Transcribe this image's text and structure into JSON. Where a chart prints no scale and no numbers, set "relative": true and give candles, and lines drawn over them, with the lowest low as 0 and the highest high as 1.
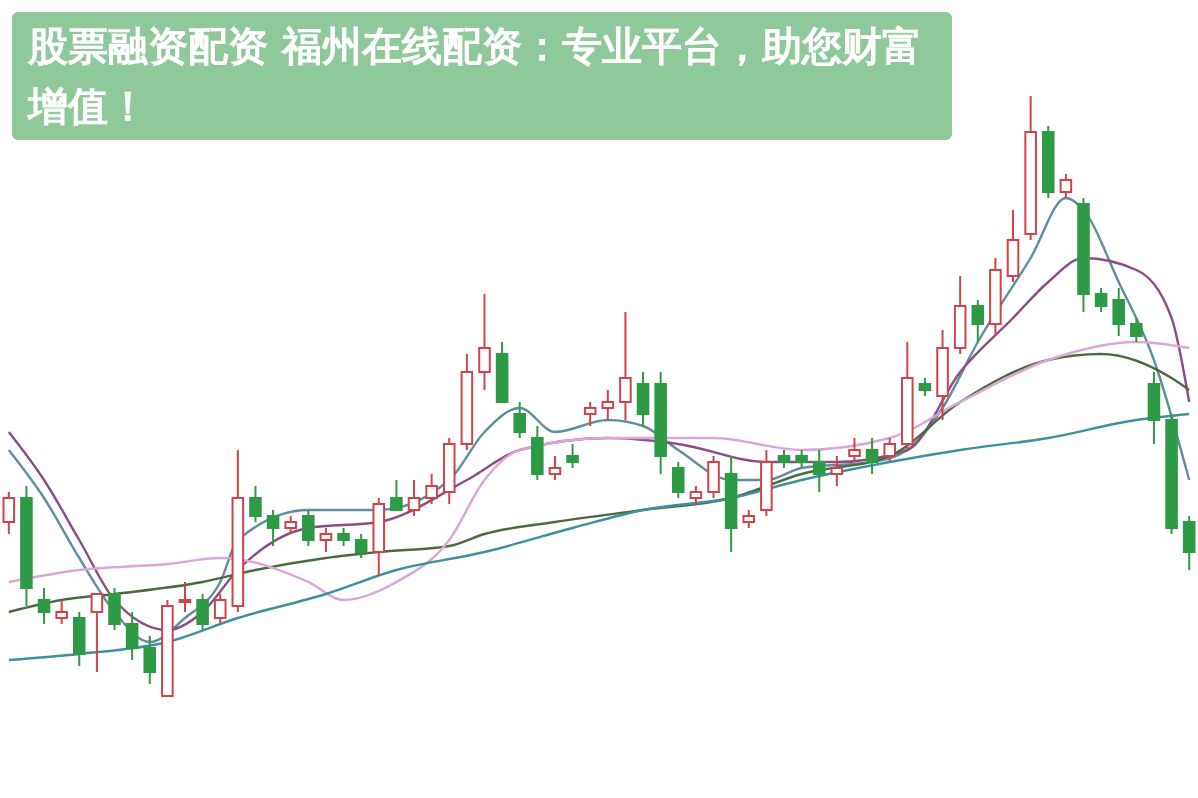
{
  "chart_data": {
    "type": "candlestick",
    "relative": true,
    "title": "股票融资配资 福州在线配资：专业平台，助您财富增值！",
    "categories": [
      null,
      null,
      null,
      null,
      null,
      null,
      null,
      null,
      null,
      null,
      null,
      null,
      null,
      null,
      null,
      null,
      null,
      null,
      null,
      null,
      null,
      null,
      null,
      null,
      null,
      null,
      null,
      null,
      null,
      null,
      null,
      null,
      null,
      null,
      null,
      null,
      null,
      null,
      null,
      null,
      null,
      null,
      null,
      null,
      null,
      null,
      null,
      null,
      null,
      null,
      null,
      null,
      null,
      null,
      null,
      null,
      null,
      null,
      null,
      null,
      null,
      null,
      null,
      null,
      null,
      null,
      null,
      null
    ],
    "ohlc": [
      [
        0.29,
        0.34,
        0.27,
        0.33
      ],
      [
        0.33,
        0.35,
        0.15,
        0.18
      ],
      [
        0.16,
        0.18,
        0.12,
        0.14
      ],
      [
        0.13,
        0.16,
        0.12,
        0.14
      ],
      [
        0.13,
        0.14,
        0.05,
        0.07
      ],
      [
        0.14,
        0.17,
        0.04,
        0.17
      ],
      [
        0.17,
        0.18,
        0.11,
        0.12
      ],
      [
        0.12,
        0.14,
        0.06,
        0.08
      ],
      [
        0.08,
        0.1,
        0.02,
        0.04
      ],
      [
        0,
        0.16,
        0,
        0.15
      ],
      [
        0.16,
        0.19,
        0.14,
        0.16
      ],
      [
        0.16,
        0.17,
        0.11,
        0.12
      ],
      [
        0.13,
        0.17,
        0.12,
        0.16
      ],
      [
        0.15,
        0.41,
        0.14,
        0.33
      ],
      [
        0.33,
        0.35,
        0.29,
        0.3
      ],
      [
        0.3,
        0.31,
        0.25,
        0.28
      ],
      [
        0.28,
        0.3,
        0.27,
        0.29
      ],
      [
        0.3,
        0.31,
        0.25,
        0.26
      ],
      [
        0.26,
        0.28,
        0.24,
        0.27
      ],
      [
        0.27,
        0.28,
        0.25,
        0.26
      ],
      [
        0.26,
        0.27,
        0.23,
        0.24
      ],
      [
        0.24,
        0.33,
        0.2,
        0.32
      ],
      [
        0.33,
        0.36,
        0.31,
        0.31
      ],
      [
        0.31,
        0.36,
        0.3,
        0.33
      ],
      [
        0.33,
        0.37,
        0.32,
        0.35
      ],
      [
        0.34,
        0.43,
        0.32,
        0.42
      ],
      [
        0.42,
        0.57,
        0.41,
        0.54
      ],
      [
        0.54,
        0.67,
        0.51,
        0.58
      ],
      [
        0.57,
        0.59,
        0.49,
        0.49
      ],
      [
        0.47,
        0.49,
        0.43,
        0.44
      ],
      [
        0.43,
        0.45,
        0.36,
        0.37
      ],
      [
        0.37,
        0.4,
        0.36,
        0.38
      ],
      [
        0.4,
        0.42,
        0.38,
        0.39
      ],
      [
        0.47,
        0.49,
        0.45,
        0.48
      ],
      [
        0.48,
        0.51,
        0.46,
        0.49
      ],
      [
        0.49,
        0.64,
        0.46,
        0.53
      ],
      [
        0.52,
        0.54,
        0.45,
        0.47
      ],
      [
        0.52,
        0.54,
        0.37,
        0.4
      ],
      [
        0.38,
        0.39,
        0.33,
        0.34
      ],
      [
        0.33,
        0.35,
        0.32,
        0.34
      ],
      [
        0.34,
        0.4,
        0.33,
        0.39
      ],
      [
        0.37,
        0.4,
        0.24,
        0.28
      ],
      [
        0.29,
        0.31,
        0.28,
        0.3
      ],
      [
        0.31,
        0.41,
        0.3,
        0.39
      ],
      [
        0.4,
        0.41,
        0.38,
        0.39
      ],
      [
        0.4,
        0.41,
        0.38,
        0.39
      ],
      [
        0.39,
        0.41,
        0.34,
        0.37
      ],
      [
        0.37,
        0.4,
        0.35,
        0.38
      ],
      [
        0.4,
        0.43,
        0.39,
        0.41
      ],
      [
        0.41,
        0.43,
        0.37,
        0.39
      ],
      [
        0.4,
        0.43,
        0.39,
        0.42
      ],
      [
        0.42,
        0.59,
        0.41,
        0.53
      ],
      [
        0.52,
        0.53,
        0.5,
        0.51
      ],
      [
        0.5,
        0.61,
        0.46,
        0.58
      ],
      [
        0.58,
        0.7,
        0.57,
        0.65
      ],
      [
        0.65,
        0.66,
        0.59,
        0.62
      ],
      [
        0.62,
        0.73,
        0.6,
        0.71
      ],
      [
        0.7,
        0.81,
        0.69,
        0.76
      ],
      [
        0.77,
        1,
        0.76,
        0.94
      ],
      [
        0.94,
        0.95,
        0.83,
        0.84
      ],
      [
        0.84,
        0.87,
        0.83,
        0.86
      ],
      [
        0.82,
        0.83,
        0.64,
        0.67
      ],
      [
        0.67,
        0.68,
        0.64,
        0.65
      ],
      [
        0.66,
        0.68,
        0.6,
        0.62
      ],
      [
        0.62,
        0.63,
        0.59,
        0.6
      ],
      [
        0.52,
        0.54,
        0.42,
        0.46
      ],
      [
        0.46,
        0.47,
        0.27,
        0.28
      ],
      [
        0.29,
        0.3,
        0.21,
        0.24
      ]
    ],
    "series": [
      {
        "type": "line",
        "color": "#5f8f9a",
        "values": [
          0.41,
          null,
          0.33,
          null,
          0.23,
          null,
          0.14,
          null,
          0.09,
          null,
          0.13,
          null,
          0.19,
          0.26,
          null,
          null,
          null,
          0.31,
          null,
          null,
          null,
          0.31,
          null,
          null,
          null,
          0.36,
          null,
          0.44,
          null,
          0.48,
          null,
          0.44,
          null,
          null,
          0.46,
          null,
          0.45,
          null,
          0.41,
          null,
          null,
          0.36,
          null,
          0.36,
          null,
          0.38,
          null,
          null,
          null,
          0.39,
          null,
          0.41,
          null,
          0.48,
          null,
          0.59,
          null,
          null,
          0.73,
          null,
          0.83,
          0.81,
          null,
          0.69,
          null,
          0.56,
          null,
          0.36
        ]
      },
      {
        "type": "line",
        "color": "#8a4d86",
        "values": [
          0.44,
          null,
          0.36,
          null,
          0.26,
          null,
          0.16,
          null,
          null,
          0.11,
          null,
          0.14,
          null,
          0.21,
          null,
          null,
          null,
          0.28,
          null,
          null,
          null,
          0.29,
          null,
          null,
          null,
          null,
          0.36,
          null,
          null,
          0.41,
          null,
          null,
          null,
          null,
          0.43,
          null,
          null,
          null,
          0.42,
          null,
          null,
          null,
          null,
          0.39,
          null,
          null,
          null,
          0.39,
          null,
          null,
          null,
          0.41,
          null,
          null,
          0.54,
          null,
          null,
          0.63,
          null,
          0.69,
          null,
          0.73,
          null,
          null,
          0.71,
          null,
          0.63,
          0.49
        ]
      },
      {
        "type": "line",
        "color": "#4a6b3e",
        "values": [
          0.14,
          null,
          null,
          0.16,
          null,
          null,
          0.17,
          null,
          null,
          null,
          null,
          0.19,
          null,
          null,
          0.21,
          null,
          null,
          null,
          0.23,
          null,
          null,
          0.24,
          null,
          null,
          null,
          0.25,
          null,
          0.27,
          null,
          null,
          null,
          0.29,
          null,
          null,
          null,
          null,
          0.31,
          null,
          null,
          null,
          null,
          0.33,
          null,
          null,
          null,
          0.37,
          null,
          null,
          null,
          null,
          0.4,
          null,
          null,
          null,
          0.49,
          null,
          null,
          null,
          null,
          0.56,
          null,
          null,
          0.57,
          null,
          null,
          null,
          0.53,
          0.51
        ]
      },
      {
        "type": "line",
        "color": "#d9a6d6",
        "values": [
          0.19,
          null,
          null,
          null,
          0.21,
          null,
          null,
          null,
          null,
          0.22,
          null,
          null,
          0.23,
          null,
          null,
          null,
          null,
          0.19,
          null,
          0.16,
          null,
          null,
          0.19,
          null,
          null,
          0.26,
          null,
          0.36,
          null,
          0.41,
          null,
          null,
          null,
          null,
          0.43,
          null,
          null,
          null,
          null,
          null,
          0.43,
          null,
          null,
          null,
          null,
          0.41,
          null,
          null,
          null,
          null,
          0.43,
          null,
          null,
          null,
          0.49,
          null,
          null,
          null,
          null,
          0.56,
          null,
          null,
          null,
          null,
          0.59,
          null,
          null,
          0.58
        ]
      },
      {
        "type": "line",
        "color": "#3f8fa3",
        "values": [
          0.06,
          null,
          null,
          null,
          0.07,
          null,
          null,
          null,
          null,
          0.09,
          null,
          null,
          null,
          0.13,
          null,
          null,
          null,
          null,
          0.17,
          null,
          null,
          null,
          0.21,
          null,
          null,
          null,
          null,
          0.24,
          null,
          null,
          null,
          null,
          0.28,
          null,
          null,
          null,
          0.31,
          null,
          null,
          null,
          null,
          0.33,
          null,
          null,
          null,
          0.36,
          null,
          null,
          null,
          null,
          0.39,
          null,
          null,
          null,
          0.41,
          null,
          null,
          null,
          null,
          0.43,
          null,
          null,
          null,
          null,
          0.46,
          null,
          null,
          0.47
        ]
      }
    ]
  }
}
